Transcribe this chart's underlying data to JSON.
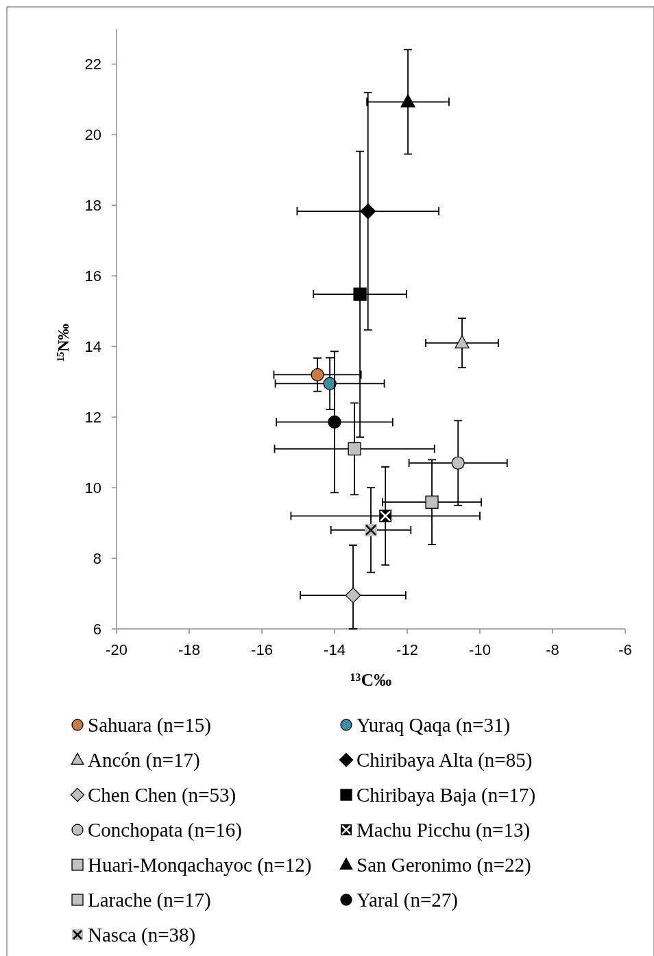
{
  "chart_data": {
    "type": "scatter",
    "xlabel": "¹³C‰",
    "ylabel": "¹⁵N‰",
    "xlim": [
      -20,
      -6
    ],
    "xticks": [
      -20,
      -18,
      -16,
      -14,
      -12,
      -10,
      -8,
      -6
    ],
    "ylim": [
      6,
      23
    ],
    "yticks": [
      6,
      8,
      10,
      12,
      14,
      16,
      18,
      20,
      22
    ],
    "grid": false,
    "legend": "bottom",
    "series": [
      {
        "name": "Sahuara (n=15)",
        "color": "#cd7a3a",
        "marker": "circle",
        "x": [
          -14.47
        ],
        "values": [
          13.2
        ],
        "xerrors": [
          1.2
        ],
        "errors": [
          0.47
        ]
      },
      {
        "name": "Yuraq Qaqa (n=31)",
        "color": "#3a8fa5",
        "marker": "circle",
        "x": [
          -14.13
        ],
        "values": [
          12.95
        ],
        "xerrors": [
          1.5
        ],
        "errors": [
          0.73
        ]
      },
      {
        "name": "Ancón (n=17)",
        "color": "#c0c0c0",
        "marker": "triangle",
        "x": [
          -10.49
        ],
        "values": [
          14.1
        ],
        "xerrors": [
          1.0
        ],
        "errors": [
          0.7
        ]
      },
      {
        "name": "Chiribaya Alta (n=85)",
        "color": "#000000",
        "marker": "diamond",
        "x": [
          -13.08
        ],
        "values": [
          17.83
        ],
        "xerrors": [
          1.95
        ],
        "errors": [
          3.36
        ]
      },
      {
        "name": "Chen Chen (n=53)",
        "color": "#c0c0c0",
        "marker": "diamond",
        "x": [
          -13.49
        ],
        "values": [
          6.95
        ],
        "xerrors": [
          1.45
        ],
        "errors": [
          [
            6.0,
            8.37
          ]
        ]
      },
      {
        "name": "Chiribaya Baja (n=17)",
        "color": "#000000",
        "marker": "square",
        "x": [
          -13.3
        ],
        "values": [
          15.48
        ],
        "xerrors": [
          1.28
        ],
        "errors": [
          4.05
        ]
      },
      {
        "name": "Conchopata (n=16)",
        "color": "#c0c0c0",
        "marker": "circle",
        "x": [
          -10.6
        ],
        "values": [
          10.7
        ],
        "xerrors": [
          1.35
        ],
        "errors": [
          1.2
        ]
      },
      {
        "name": "Machu Picchu (n=13)",
        "color": "#ffffff",
        "marker": "cross",
        "x": [
          -12.6
        ],
        "values": [
          9.2
        ],
        "xerrors": [
          2.6
        ],
        "errors": [
          1.39
        ]
      },
      {
        "name": "Huari-Monqachayoc (n=12)",
        "color": "#c0c0c0",
        "marker": "square",
        "x": [
          -11.32
        ],
        "values": [
          9.59
        ],
        "xerrors": [
          1.36
        ],
        "errors": [
          1.2
        ]
      },
      {
        "name": "San Geronimo (n=22)",
        "color": "#000000",
        "marker": "triangle",
        "x": [
          -11.98
        ],
        "values": [
          20.93
        ],
        "xerrors": [
          1.13
        ],
        "errors": [
          1.48
        ]
      },
      {
        "name": "Larache (n=17)",
        "color": "#c0c0c0",
        "marker": "square",
        "x": [
          -13.45
        ],
        "values": [
          11.1
        ],
        "xerrors": [
          2.2
        ],
        "errors": [
          1.3
        ]
      },
      {
        "name": "Yaral (n=27)",
        "color": "#000000",
        "marker": "circle",
        "x": [
          -14.0
        ],
        "values": [
          11.86
        ],
        "xerrors": [
          1.6
        ],
        "errors": [
          2.0
        ]
      },
      {
        "name": "Nasca (n=38)",
        "color": "#000000",
        "marker": "cross",
        "x": [
          -13.0
        ],
        "values": [
          8.8
        ],
        "xerrors": [
          1.1
        ],
        "errors": [
          1.2
        ]
      }
    ]
  }
}
